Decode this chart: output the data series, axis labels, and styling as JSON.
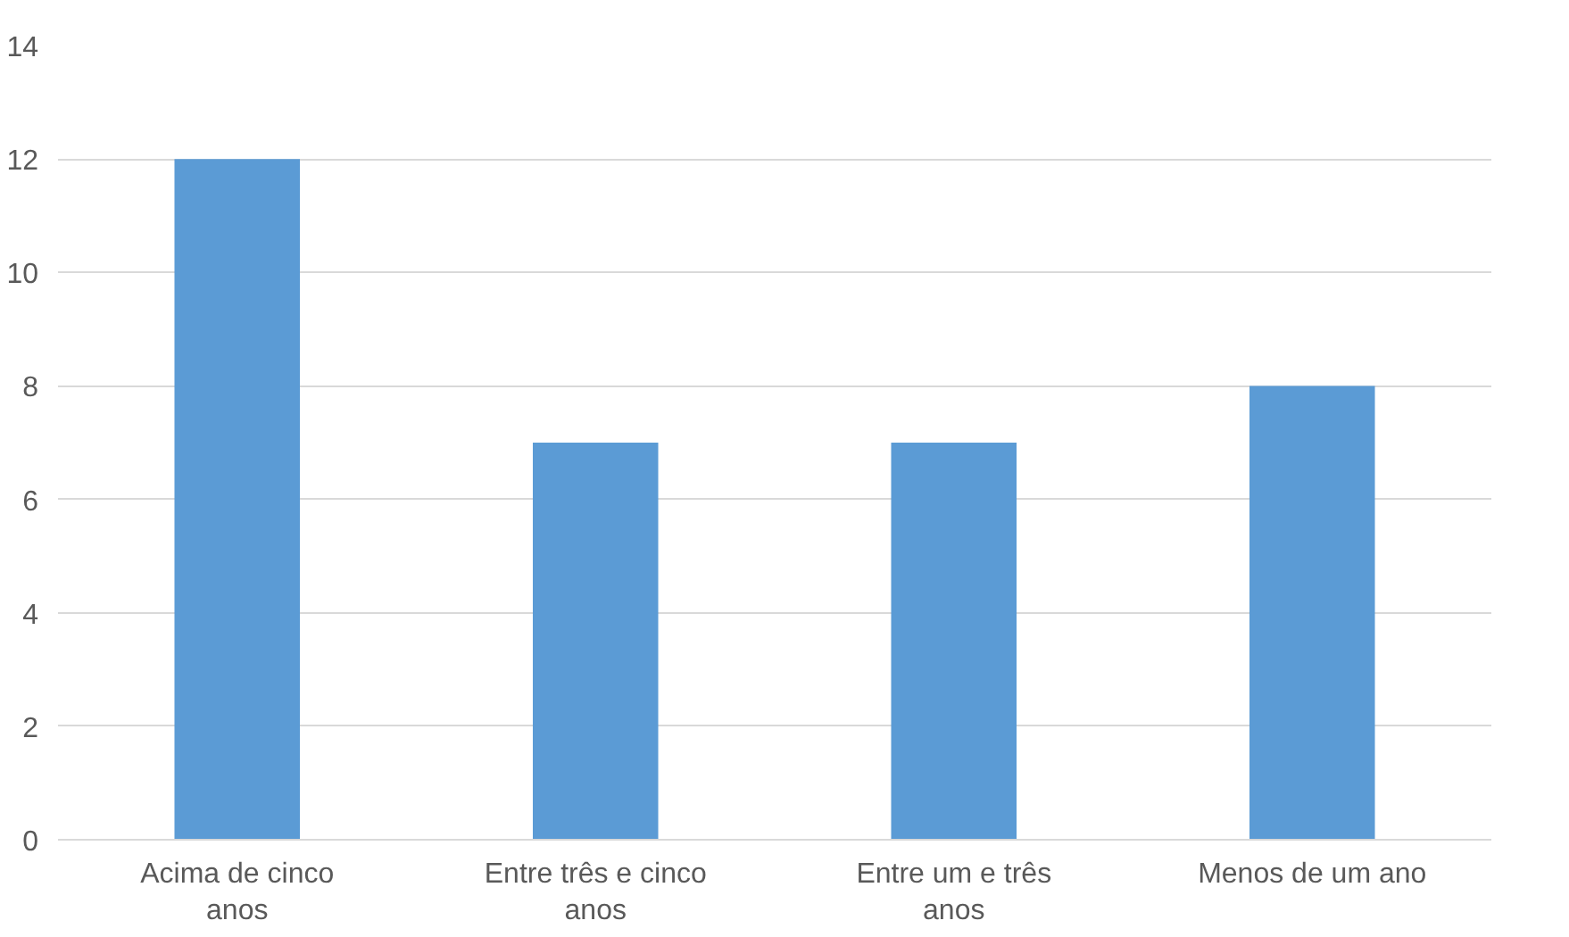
{
  "chart_data": {
    "type": "bar",
    "categories": [
      "Acima de cinco anos",
      "Entre três e cinco anos",
      "Entre um e três anos",
      "Menos de um ano"
    ],
    "values": [
      12,
      7,
      7,
      8
    ],
    "color": "#5b9bd5",
    "ylim": [
      0,
      14
    ],
    "yticks": [
      0,
      2,
      4,
      6,
      8,
      10,
      12,
      14
    ],
    "grid": "y"
  }
}
